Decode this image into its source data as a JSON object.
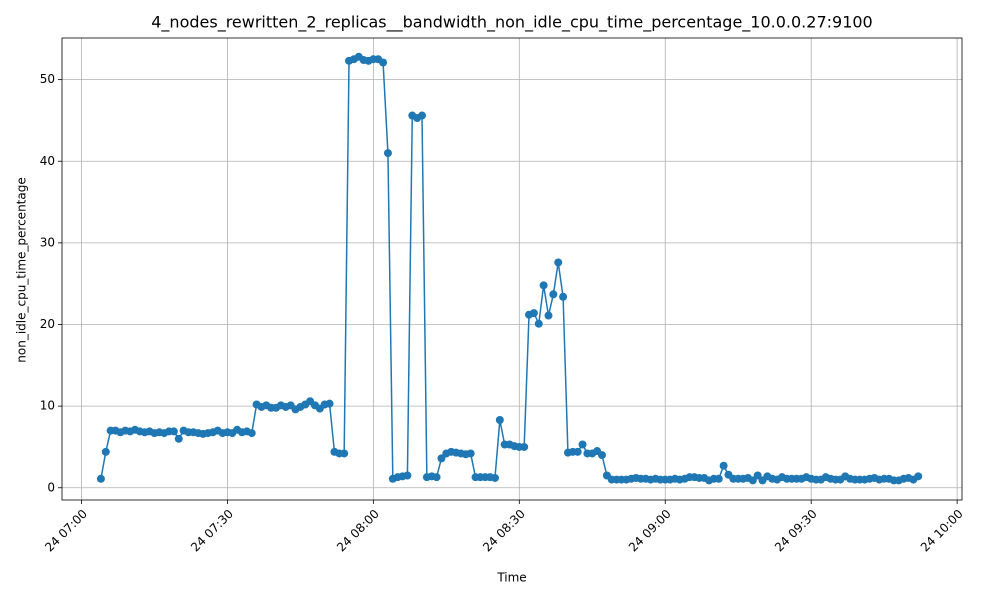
{
  "chart_data": {
    "type": "line",
    "title": "4_nodes_rewritten_2_replicas__bandwidth_non_idle_cpu_time_percentage_10.0.0.27:9100",
    "x_label": "Time",
    "y_label": "non_idle_cpu_time_percentage",
    "x": [
      "24 07:04",
      "24 07:05",
      "24 07:06",
      "24 07:07",
      "24 07:08",
      "24 07:09",
      "24 07:10",
      "24 07:11",
      "24 07:12",
      "24 07:13",
      "24 07:14",
      "24 07:15",
      "24 07:16",
      "24 07:17",
      "24 07:18",
      "24 07:19",
      "24 07:20",
      "24 07:21",
      "24 07:22",
      "24 07:23",
      "24 07:24",
      "24 07:25",
      "24 07:26",
      "24 07:27",
      "24 07:28",
      "24 07:29",
      "24 07:30",
      "24 07:31",
      "24 07:32",
      "24 07:33",
      "24 07:34",
      "24 07:35",
      "24 07:36",
      "24 07:37",
      "24 07:38",
      "24 07:39",
      "24 07:40",
      "24 07:41",
      "24 07:42",
      "24 07:43",
      "24 07:44",
      "24 07:45",
      "24 07:46",
      "24 07:47",
      "24 07:48",
      "24 07:49",
      "24 07:50",
      "24 07:51",
      "24 07:52",
      "24 07:53",
      "24 07:54",
      "24 07:55",
      "24 07:56",
      "24 07:57",
      "24 07:58",
      "24 07:59",
      "24 08:00",
      "24 08:01",
      "24 08:02",
      "24 08:03",
      "24 08:04",
      "24 08:05",
      "24 08:06",
      "24 08:07",
      "24 08:08",
      "24 08:09",
      "24 08:10",
      "24 08:11",
      "24 08:12",
      "24 08:13",
      "24 08:14",
      "24 08:15",
      "24 08:16",
      "24 08:17",
      "24 08:18",
      "24 08:19",
      "24 08:20",
      "24 08:21",
      "24 08:22",
      "24 08:23",
      "24 08:24",
      "24 08:25",
      "24 08:26",
      "24 08:27",
      "24 08:28",
      "24 08:29",
      "24 08:30",
      "24 08:31",
      "24 08:32",
      "24 08:33",
      "24 08:34",
      "24 08:35",
      "24 08:36",
      "24 08:37",
      "24 08:38",
      "24 08:39",
      "24 08:40",
      "24 08:41",
      "24 08:42",
      "24 08:43",
      "24 08:44",
      "24 08:45",
      "24 08:46",
      "24 08:47",
      "24 08:48",
      "24 08:49",
      "24 08:50",
      "24 08:51",
      "24 08:52",
      "24 08:53",
      "24 08:54",
      "24 08:55",
      "24 08:56",
      "24 08:57",
      "24 08:58",
      "24 08:59",
      "24 09:00",
      "24 09:01",
      "24 09:02",
      "24 09:03",
      "24 09:04",
      "24 09:05",
      "24 09:06",
      "24 09:07",
      "24 09:08",
      "24 09:09",
      "24 09:10",
      "24 09:11",
      "24 09:12",
      "24 09:13",
      "24 09:14",
      "24 09:15",
      "24 09:16",
      "24 09:17",
      "24 09:18",
      "24 09:19",
      "24 09:20",
      "24 09:21",
      "24 09:22",
      "24 09:23",
      "24 09:24",
      "24 09:25",
      "24 09:26",
      "24 09:27",
      "24 09:28",
      "24 09:29",
      "24 09:30",
      "24 09:31",
      "24 09:32",
      "24 09:33",
      "24 09:34",
      "24 09:35",
      "24 09:36",
      "24 09:37",
      "24 09:38",
      "24 09:39",
      "24 09:40",
      "24 09:41",
      "24 09:42",
      "24 09:43",
      "24 09:44",
      "24 09:45",
      "24 09:46",
      "24 09:47",
      "24 09:48",
      "24 09:49",
      "24 09:50",
      "24 09:51",
      "24 09:52"
    ],
    "series": [
      {
        "color": "#1f77b4",
        "values": [
          1.1,
          4.4,
          7.0,
          7.0,
          6.8,
          7.0,
          6.9,
          7.1,
          6.9,
          6.8,
          6.9,
          6.7,
          6.8,
          6.7,
          6.9,
          6.9,
          6.0,
          7.0,
          6.8,
          6.8,
          6.7,
          6.6,
          6.7,
          6.8,
          7.0,
          6.7,
          6.8,
          6.7,
          7.1,
          6.8,
          6.9,
          6.7,
          10.2,
          9.9,
          10.1,
          9.8,
          9.8,
          10.1,
          9.9,
          10.1,
          9.6,
          9.9,
          10.2,
          10.6,
          10.1,
          9.7,
          10.2,
          10.3,
          4.4,
          4.2,
          4.2,
          52.3,
          52.5,
          52.8,
          52.4,
          52.3,
          52.5,
          52.5,
          52.1,
          41.0,
          1.1,
          1.3,
          1.4,
          1.5,
          45.6,
          45.3,
          45.6,
          1.3,
          1.4,
          1.3,
          3.6,
          4.2,
          4.4,
          4.3,
          4.2,
          4.1,
          4.2,
          1.3,
          1.3,
          1.3,
          1.3,
          1.2,
          8.3,
          5.3,
          5.3,
          5.1,
          5.0,
          5.0,
          21.2,
          21.4,
          20.1,
          24.8,
          21.1,
          23.7,
          27.6,
          23.4,
          4.3,
          4.4,
          4.4,
          5.3,
          4.2,
          4.2,
          4.5,
          4.0,
          1.5,
          1.0,
          1.0,
          1.0,
          1.0,
          1.1,
          1.2,
          1.1,
          1.1,
          1.0,
          1.1,
          1.0,
          1.0,
          1.0,
          1.1,
          1.0,
          1.1,
          1.3,
          1.3,
          1.2,
          1.2,
          0.9,
          1.1,
          1.1,
          2.7,
          1.6,
          1.1,
          1.1,
          1.1,
          1.2,
          0.9,
          1.5,
          0.9,
          1.4,
          1.1,
          1.0,
          1.3,
          1.1,
          1.1,
          1.1,
          1.1,
          1.3,
          1.1,
          1.0,
          1.0,
          1.3,
          1.1,
          1.0,
          1.0,
          1.4,
          1.1,
          1.0,
          1.0,
          1.0,
          1.1,
          1.2,
          1.0,
          1.1,
          1.1,
          0.9,
          0.9,
          1.1,
          1.2,
          1.0,
          1.4
        ]
      }
    ],
    "xlim": [
      "24 06:56",
      "24 10:01"
    ],
    "xticks": [
      "24 07:00",
      "24 07:30",
      "24 08:00",
      "24 08:30",
      "24 09:00",
      "24 09:30",
      "24 10:00"
    ],
    "ylim": [
      -1.5,
      55.1
    ],
    "yticks": [
      0,
      10,
      20,
      30,
      40,
      50
    ],
    "grid": true,
    "markers": true
  }
}
